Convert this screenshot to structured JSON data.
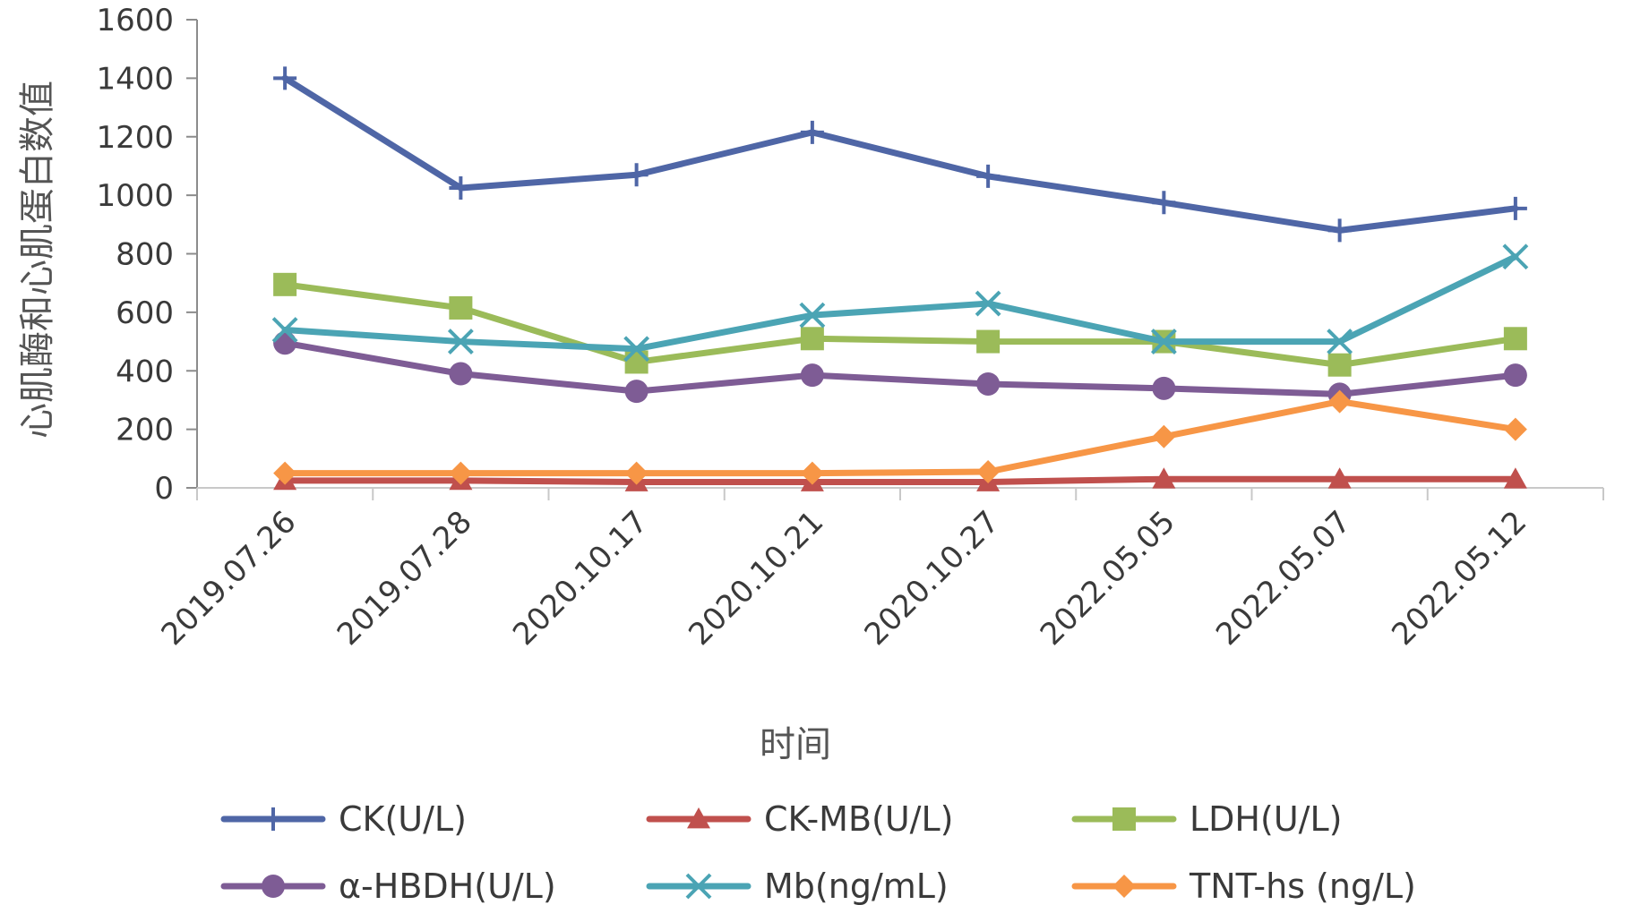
{
  "chart_data": {
    "type": "line",
    "title": "",
    "xlabel": "时间",
    "ylabel": "心肌酶和心肌蛋白数值",
    "ylim": [
      0,
      1600
    ],
    "yticks": [
      "0",
      "200",
      "400",
      "600",
      "800",
      "1000",
      "1200",
      "1400",
      "1600"
    ],
    "categories": [
      "2019.07.26",
      "2019.07.28",
      "2020.10.17",
      "2020.10.21",
      "2020.10.27",
      "2022.05.05",
      "2022.05.07",
      "2022.05.12"
    ],
    "legend_position": "bottom",
    "series": [
      {
        "name": "CK(U/L)",
        "color": "#4F66A6",
        "marker": "plus",
        "values": [
          1400,
          1025,
          1070,
          1215,
          1065,
          975,
          880,
          955
        ]
      },
      {
        "name": "CK-MB(U/L)",
        "color": "#C0504D",
        "marker": "triangle",
        "values": [
          25,
          25,
          20,
          20,
          20,
          30,
          30,
          30
        ]
      },
      {
        "name": "LDH(U/L)",
        "color": "#9BBB59",
        "marker": "square",
        "values": [
          695,
          615,
          430,
          510,
          500,
          500,
          420,
          510
        ]
      },
      {
        "name": "α-HBDH(U/L)",
        "color": "#7E5C95",
        "marker": "circle",
        "values": [
          495,
          390,
          330,
          385,
          355,
          340,
          320,
          385
        ]
      },
      {
        "name": "Mb(ng/mL)",
        "color": "#4BA4B4",
        "marker": "x",
        "values": [
          540,
          500,
          475,
          590,
          630,
          500,
          500,
          790
        ]
      },
      {
        "name": "TNT-hs (ng/L)",
        "color": "#F79646",
        "marker": "diamond",
        "values": [
          50,
          50,
          50,
          50,
          55,
          175,
          295,
          200
        ]
      }
    ]
  }
}
